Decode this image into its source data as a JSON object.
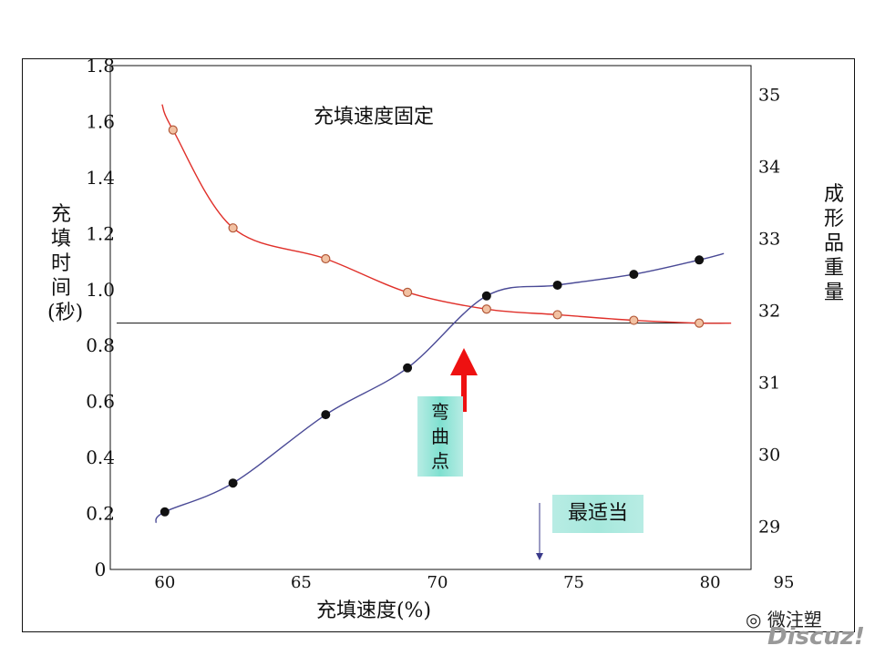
{
  "chart_data": {
    "type": "line",
    "title": "充填速度固定",
    "xlabel": "充填速度(%)",
    "ylabel_left": "充填时间(秒)",
    "ylabel_right": "成形品重量",
    "x_ticks": [
      "60",
      "65",
      "70",
      "75",
      "80"
    ],
    "x_ticks_extra": "95",
    "y_left_ticks": [
      "0",
      "0.2",
      "0.4",
      "0.6",
      "0.8",
      "1.0",
      "1.2",
      "1.4",
      "1.6",
      "1.8"
    ],
    "y_right_ticks": [
      "29",
      "30",
      "31",
      "32",
      "33",
      "34",
      "35"
    ],
    "xlim": [
      58,
      81.5
    ],
    "ylim_left": [
      0,
      1.8
    ],
    "ylim_right": [
      28.4,
      35.4
    ],
    "series": [
      {
        "axis": "left",
        "color": "#e0302a",
        "marker": "circle-open",
        "points": [
          [
            60.3,
            1.57
          ],
          [
            62.5,
            1.22
          ],
          [
            65.9,
            1.11
          ],
          [
            68.9,
            0.99
          ],
          [
            71.8,
            0.93
          ],
          [
            74.4,
            0.91
          ],
          [
            77.2,
            0.89
          ],
          [
            79.6,
            0.88
          ]
        ]
      },
      {
        "axis": "right",
        "color": "#4a4a96",
        "marker": "circle-filled",
        "points": [
          [
            60.0,
            29.2
          ],
          [
            62.5,
            29.6
          ],
          [
            65.9,
            30.55
          ],
          [
            68.9,
            31.2
          ],
          [
            71.8,
            32.2
          ],
          [
            74.4,
            32.35
          ],
          [
            77.2,
            32.5
          ],
          [
            79.6,
            32.7
          ]
        ]
      }
    ],
    "reference_line_y": 0.88,
    "annotations": {
      "bend_point_label": "弯曲点",
      "optimal_label": "最适当"
    }
  },
  "watermark": {
    "line1": "微注塑",
    "line2": "Discuz!"
  }
}
